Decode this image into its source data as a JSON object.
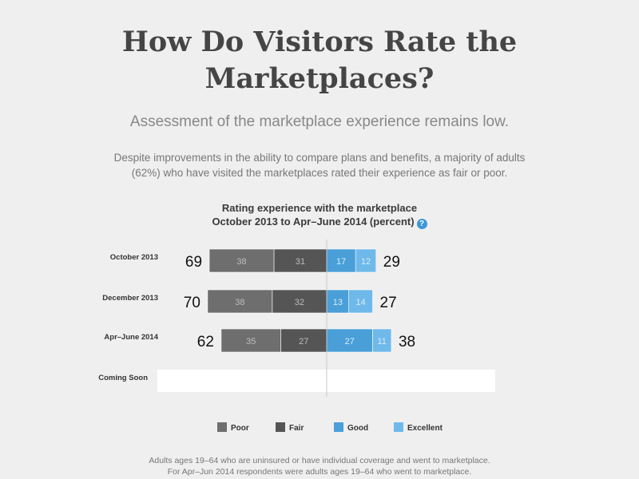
{
  "header": {
    "title_line1": "How Do Visitors Rate the",
    "title_line2": "Marketplaces?",
    "subtitle": "Assessment of the marketplace experience remains low.",
    "description": "Despite improvements in the ability to compare plans and benefits, a majority of adults (62%) who have visited the marketplaces rated their experience as fair or poor."
  },
  "chart_data": {
    "type": "bar",
    "title": "Rating experience with the marketplace",
    "subtitle": "October 2013 to Apr–June 2014 (percent)",
    "help_icon": "?",
    "categories": [
      "October 2013",
      "December 2013",
      "Apr–June 2014"
    ],
    "series": [
      {
        "name": "Poor",
        "side": "negative",
        "color": "#6e6e6e",
        "values": [
          38,
          38,
          35
        ]
      },
      {
        "name": "Fair",
        "side": "negative",
        "color": "#555555",
        "values": [
          31,
          32,
          27
        ]
      },
      {
        "name": "Good",
        "side": "positive",
        "color": "#4a9fd8",
        "values": [
          17,
          13,
          27
        ]
      },
      {
        "name": "Excellent",
        "side": "positive",
        "color": "#6fb9ea",
        "values": [
          12,
          14,
          11
        ]
      }
    ],
    "negative_totals": [
      69,
      70,
      62
    ],
    "positive_totals": [
      29,
      27,
      38
    ],
    "placeholder_row": "Coming Soon",
    "legend_position": "bottom"
  },
  "footer": {
    "line1": "Adults ages 19–64 who are uninsured or have individual coverage and went to marketplace.",
    "line2": "For Apr–Jun 2014 respondents were adults ages 19–64 who went to marketplace."
  }
}
